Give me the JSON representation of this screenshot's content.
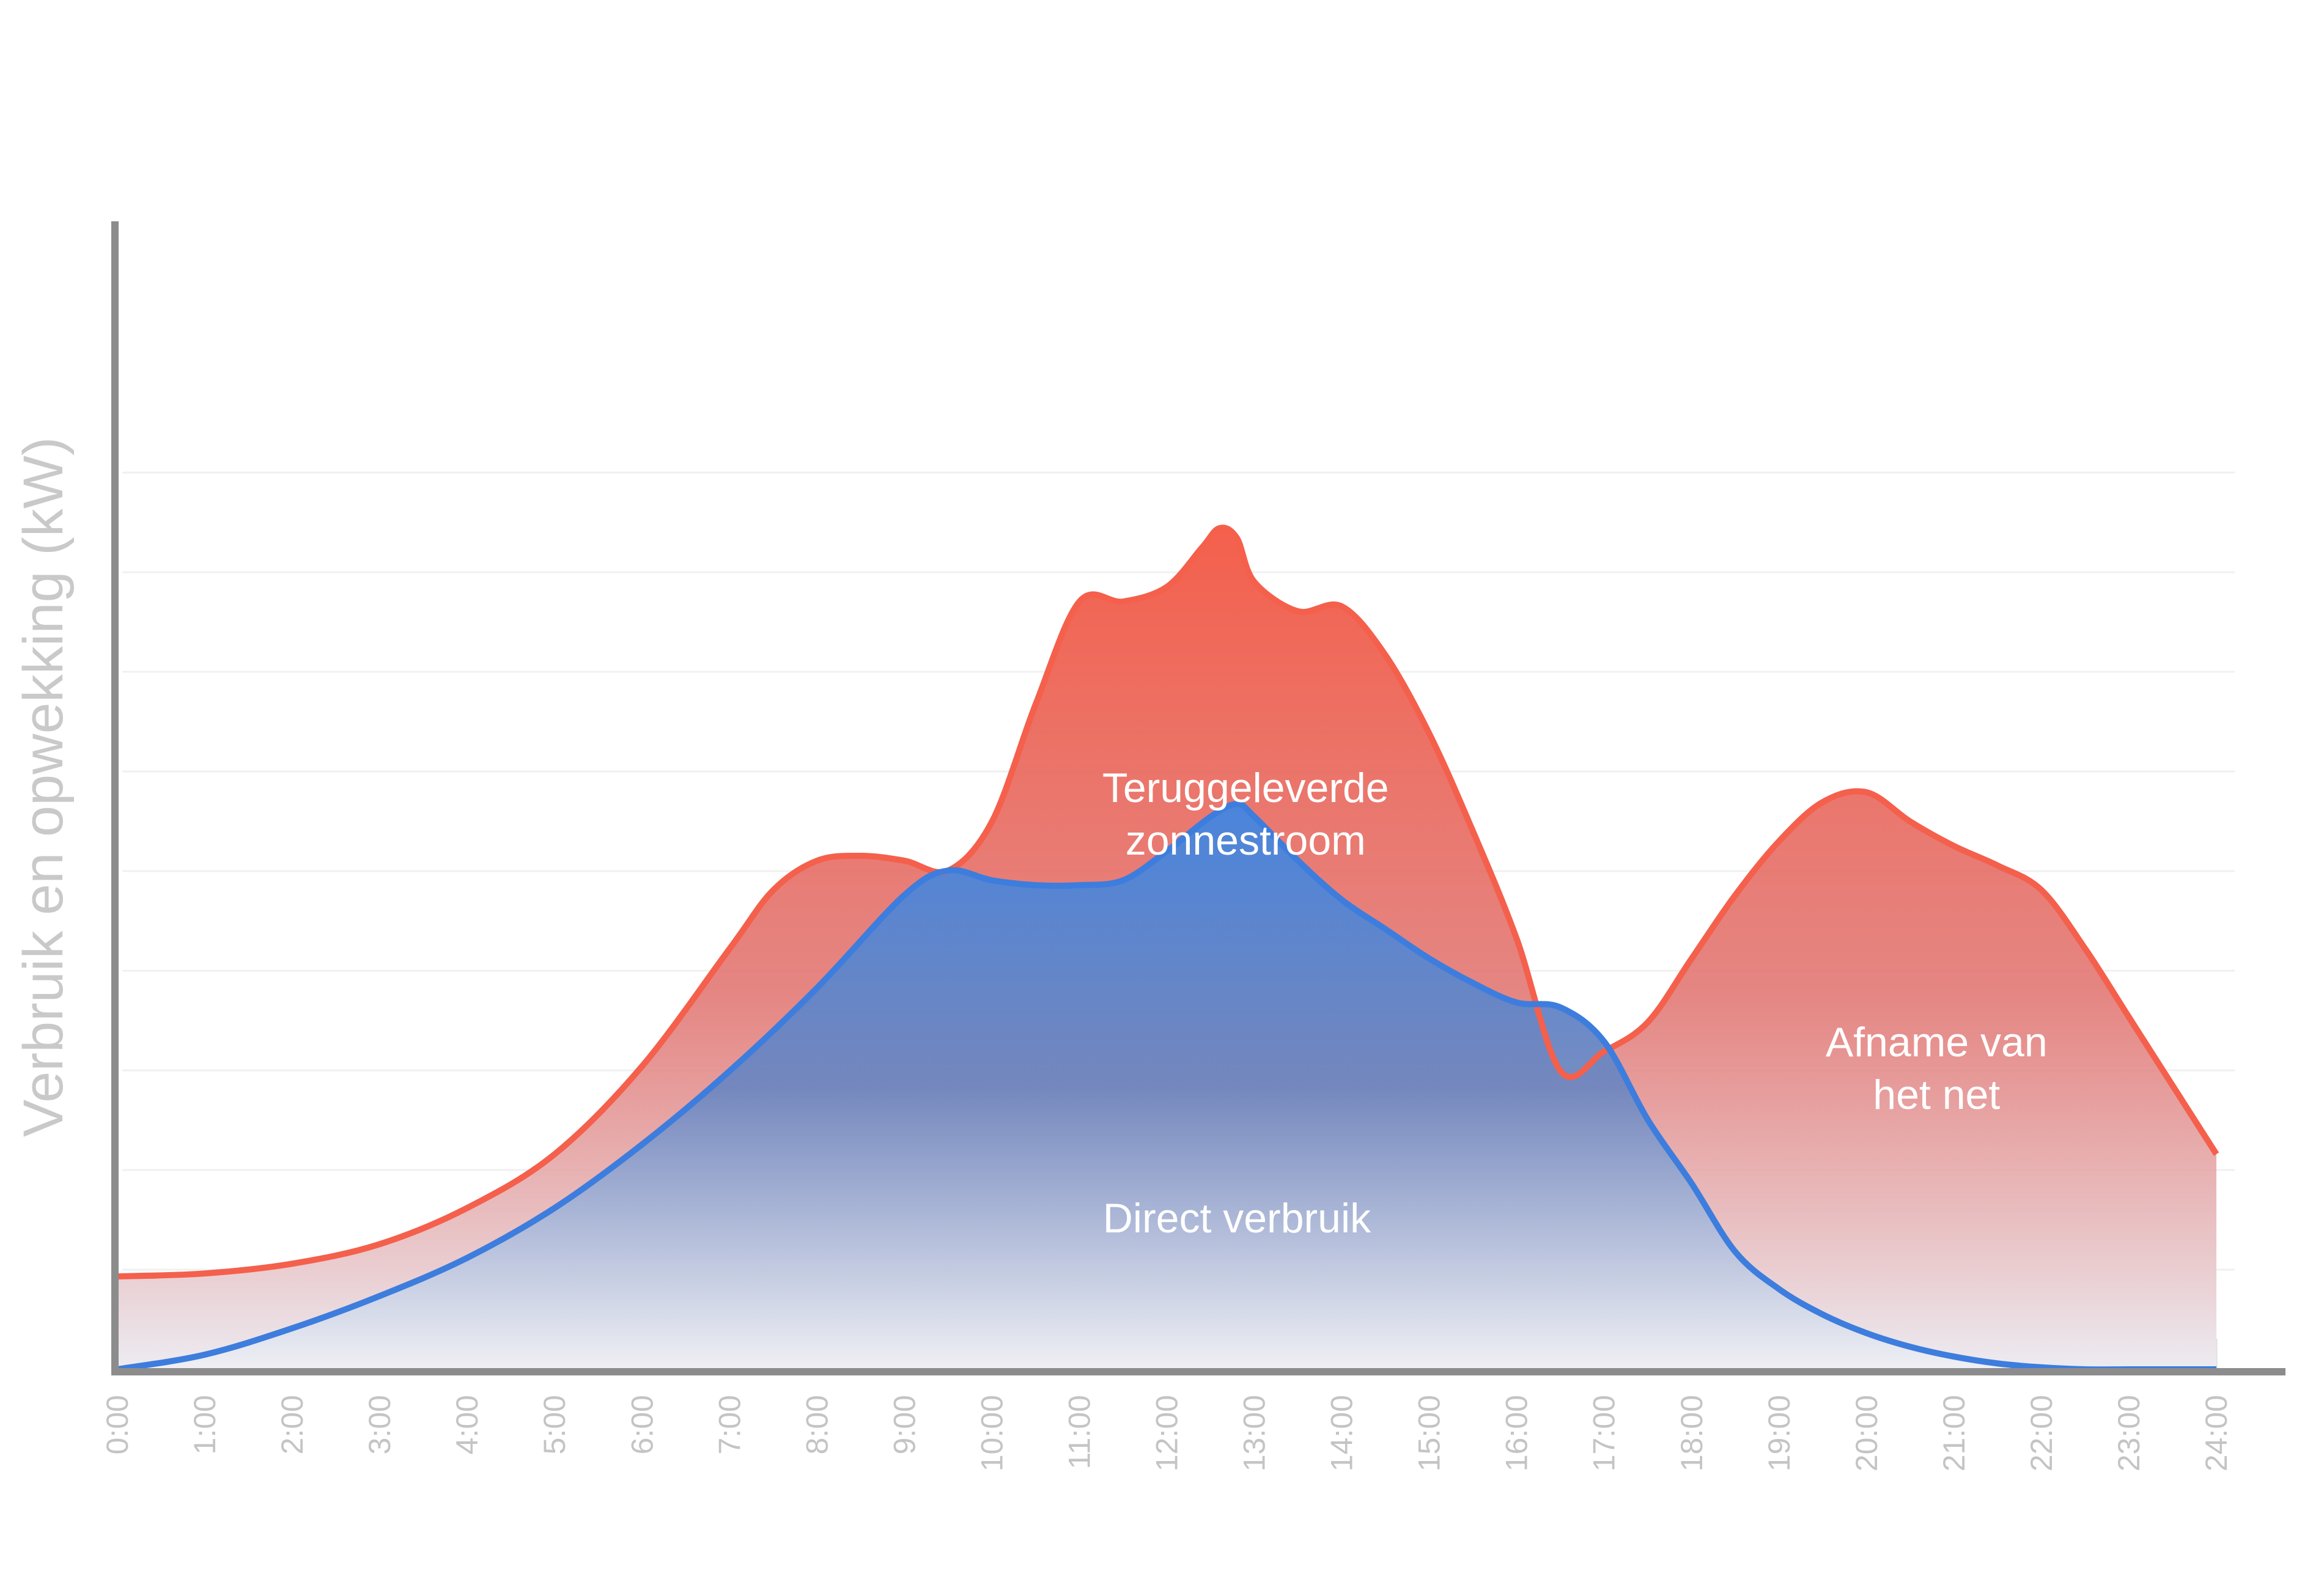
{
  "chart_data": {
    "type": "area",
    "title": "",
    "xlabel": "",
    "ylabel": "Verbruik en opwekking (kW)",
    "x_tick_labels": [
      "0:00",
      "1:00",
      "2:00",
      "3:00",
      "4:00",
      "5:00",
      "6:00",
      "7:00",
      "8:00",
      "9:00",
      "10:00",
      "11:00",
      "12:00",
      "13:00",
      "14:00",
      "15:00",
      "16:00",
      "17:00",
      "18:00",
      "19:00",
      "20:00",
      "21:00",
      "22:00",
      "23:00",
      "24:00"
    ],
    "xlim": [
      0,
      24
    ],
    "ylim": [
      0,
      10
    ],
    "grid": true,
    "annotations": [
      {
        "lines": [
          "Teruggeleverde",
          "zonnestroom"
        ],
        "x": 12.9,
        "y": 5.8
      },
      {
        "lines": [
          "Afname van",
          "het net"
        ],
        "x": 20.8,
        "y": 3.2
      },
      {
        "lines": [
          "Direct verbruik"
        ],
        "x": 12.8,
        "y": 1.4
      }
    ],
    "series": [
      {
        "color": "#f4604c",
        "x": [
          0,
          1,
          2,
          3,
          4,
          5,
          6,
          7,
          7.5,
          8,
          8.5,
          9,
          9.5,
          10,
          10.5,
          11,
          11.5,
          12,
          12.4,
          12.6,
          12.8,
          13,
          13.5,
          14,
          14.5,
          15,
          15.5,
          16,
          16.5,
          17,
          17.5,
          18,
          18.5,
          19,
          19.5,
          20,
          20.5,
          21,
          21.5,
          22,
          22.5,
          23,
          23.5,
          24
        ],
        "values": [
          0.95,
          0.98,
          1.08,
          1.28,
          1.65,
          2.2,
          3.1,
          4.3,
          4.9,
          5.2,
          5.25,
          5.2,
          5.1,
          5.6,
          6.8,
          7.85,
          7.85,
          8.0,
          8.4,
          8.6,
          8.5,
          8.05,
          7.75,
          7.8,
          7.3,
          6.5,
          5.5,
          4.4,
          3.05,
          3.25,
          3.55,
          4.2,
          4.85,
          5.4,
          5.8,
          5.9,
          5.6,
          5.35,
          5.15,
          4.9,
          4.3,
          3.6,
          2.9,
          2.2
        ]
      },
      {
        "color": "#3d7ddd",
        "x": [
          0,
          1,
          2,
          3,
          4,
          5,
          6,
          7,
          8,
          9,
          9.5,
          10,
          10.5,
          11,
          11.5,
          12,
          12.5,
          12.8,
          13,
          13.5,
          14,
          14.5,
          15,
          15.5,
          16,
          16.5,
          17,
          17.5,
          18,
          18.5,
          19,
          19.5,
          20,
          20.5,
          21,
          21.5,
          22,
          22.5,
          23,
          23.5,
          24
        ],
        "values": [
          0,
          0.15,
          0.42,
          0.75,
          1.14,
          1.65,
          2.3,
          3.05,
          3.9,
          4.85,
          5.1,
          5.0,
          4.95,
          4.95,
          5.0,
          5.3,
          5.65,
          5.78,
          5.65,
          5.2,
          4.8,
          4.5,
          4.2,
          3.95,
          3.75,
          3.7,
          3.35,
          2.55,
          1.9,
          1.2,
          0.82,
          0.56,
          0.37,
          0.23,
          0.13,
          0.06,
          0.02,
          0,
          0,
          0,
          0
        ]
      }
    ]
  }
}
